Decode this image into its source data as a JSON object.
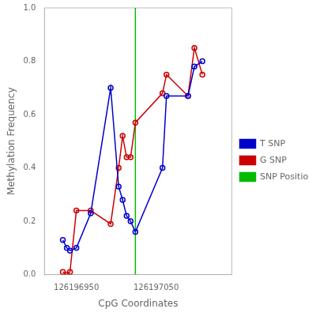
{
  "chart_data": {
    "type": "line",
    "xlabel": "CpG Coordinates",
    "ylabel": "Methylation Frequency",
    "x": [
      126196933,
      126196938,
      126196942,
      126196950,
      126196968,
      126196993,
      126197003,
      126197008,
      126197013,
      126197018,
      126197024,
      126197058,
      126197063,
      126197090,
      126197098,
      126197108
    ],
    "series": [
      {
        "name": "T SNP",
        "color": "#0000cc",
        "marker": "circle",
        "values": [
          0.13,
          0.1,
          0.09,
          0.1,
          0.23,
          0.7,
          0.33,
          0.28,
          0.22,
          0.2,
          0.16,
          0.4,
          0.67,
          0.67,
          0.78,
          0.8
        ]
      },
      {
        "name": "G SNP",
        "color": "#cc0000",
        "marker": "circle",
        "values": [
          0.01,
          0.0,
          0.01,
          0.24,
          0.24,
          0.19,
          0.4,
          0.52,
          0.44,
          0.44,
          0.57,
          0.68,
          0.75,
          0.67,
          0.85,
          0.75
        ]
      }
    ],
    "vline": {
      "name": "SNP Position",
      "x": 126197024,
      "color": "#00bb00"
    },
    "xlim": [
      126196910,
      126197145
    ],
    "xticks": [
      126196950,
      126197050
    ],
    "ylim": [
      0.0,
      1.0
    ],
    "yticks": [
      {
        "value": 0.0,
        "label": "0.0"
      },
      0.2,
      0.4,
      0.6,
      0.8,
      {
        "value": 1.0,
        "label": "1.0"
      }
    ],
    "grid": false,
    "legend": "right"
  }
}
